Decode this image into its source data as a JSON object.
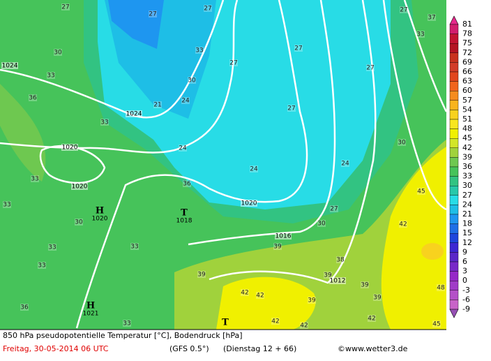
{
  "colorbar": {
    "labels": [
      81,
      78,
      75,
      72,
      69,
      66,
      63,
      60,
      57,
      54,
      51,
      48,
      45,
      42,
      39,
      36,
      33,
      30,
      27,
      24,
      21,
      18,
      15,
      12,
      9,
      6,
      3,
      0,
      -3,
      -6,
      -9
    ],
    "band_colors": [
      "#e6288c",
      "#d21e6e",
      "#c31432",
      "#b41423",
      "#c8321e",
      "#d23c28",
      "#e1461e",
      "#f0641e",
      "#f58c1e",
      "#f8b41e",
      "#f8d21e",
      "#f8e61e",
      "#f0f000",
      "#d2e628",
      "#a0d23c",
      "#6ec850",
      "#46c35a",
      "#32c382",
      "#28c8aa",
      "#28dce6",
      "#1ebee6",
      "#1e96f0",
      "#1e6ee6",
      "#1e46dc",
      "#3c28d2",
      "#5a28c8",
      "#7828c8",
      "#9628c8",
      "#a03cc8",
      "#b450c8",
      "#c864c8",
      "#9650b4"
    ]
  },
  "map": {
    "temperature_labels": [
      27,
      27,
      27,
      30,
      33,
      33,
      30,
      36,
      21,
      24,
      33,
      27,
      27,
      27,
      33,
      37,
      27,
      27,
      24,
      24,
      30,
      45,
      42,
      33,
      33,
      36,
      30,
      33,
      33,
      33,
      30,
      27,
      39,
      38,
      39,
      39,
      39,
      42,
      42,
      39,
      39,
      36,
      33,
      42,
      42,
      45,
      48,
      42,
      24
    ],
    "isobar_labels": [
      1024,
      1024,
      1020,
      1020,
      1020,
      1016,
      1012
    ],
    "pressure_centers": [
      {
        "symbol": "H",
        "pressure": 1020
      },
      {
        "symbol": "H",
        "pressure": 1021
      },
      {
        "symbol": "T",
        "pressure": 1018
      },
      {
        "symbol": "T"
      }
    ]
  },
  "footer": {
    "title": "850 hPa pseudopotentielle Temperatur [°C], Bodendruck [hPa]",
    "date": "Freitag, 30-05-2014   06 UTC",
    "model": "(GFS 0.5°)",
    "run": "(Dienstag 12 + 66)",
    "source": "©www.wetter3.de"
  }
}
